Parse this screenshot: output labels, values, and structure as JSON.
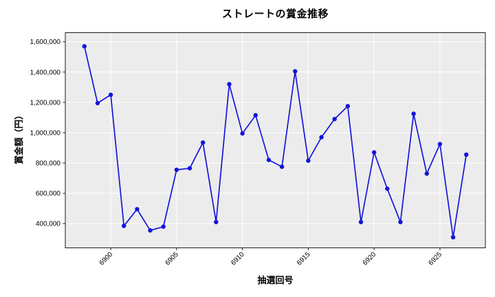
{
  "chart_data": {
    "type": "line",
    "title": "ストレートの賞金推移",
    "xlabel": "抽選回号",
    "ylabel": "賞金額（円）",
    "x": [
      6898,
      6899,
      6900,
      6901,
      6902,
      6903,
      6904,
      6905,
      6906,
      6907,
      6908,
      6909,
      6910,
      6911,
      6912,
      6913,
      6914,
      6915,
      6916,
      6917,
      6918,
      6919,
      6920,
      6921,
      6922,
      6923,
      6924,
      6925,
      6926,
      6927
    ],
    "values": [
      1570000,
      1195000,
      1250000,
      385000,
      495000,
      355000,
      380000,
      755000,
      765000,
      935000,
      410000,
      1320000,
      995000,
      1115000,
      820000,
      775000,
      1405000,
      815000,
      970000,
      1090000,
      1175000,
      410000,
      870000,
      630000,
      410000,
      1125000,
      730000,
      925000,
      310000,
      855000
    ],
    "xticks": [
      6900,
      6905,
      6910,
      6915,
      6920,
      6925
    ],
    "yticks": [
      400000,
      600000,
      800000,
      1000000,
      1200000,
      1400000,
      1600000
    ],
    "ylim": [
      240000,
      1660000
    ],
    "grid": true,
    "legend": "none",
    "colors": {
      "line": "#1414dc",
      "marker": "#1414dc",
      "plot_bg": "#ececec",
      "grid": "#ffffff",
      "spine": "#1a1a1a",
      "tick_text": "#000000"
    }
  }
}
